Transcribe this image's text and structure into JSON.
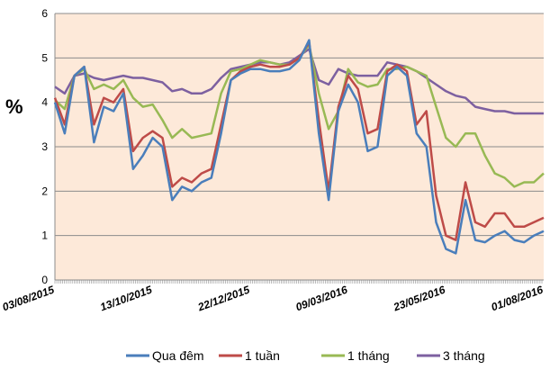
{
  "chart_data": {
    "type": "line",
    "title": "",
    "ylabel": "%",
    "xlabel": "",
    "ylim": [
      0,
      6
    ],
    "yticks": [
      0,
      1,
      2,
      3,
      4,
      5,
      6
    ],
    "x_tick_labels": [
      "03/08/2015",
      "13/10/2015",
      "22/12/2015",
      "09/03/2016",
      "23/05/2016",
      "01/08/2016"
    ],
    "grid": true,
    "legend_position": "bottom",
    "background_color": "#FDE9D9",
    "series": [
      {
        "name": "Qua đêm",
        "color": "#4A7EBB",
        "values": [
          4.0,
          3.3,
          4.6,
          4.8,
          3.1,
          3.9,
          3.8,
          4.2,
          2.5,
          2.8,
          3.2,
          3.0,
          1.8,
          2.1,
          2.0,
          2.2,
          2.3,
          3.3,
          4.5,
          4.65,
          4.75,
          4.75,
          4.7,
          4.7,
          4.75,
          4.95,
          5.4,
          3.3,
          1.8,
          3.8,
          4.4,
          4.0,
          2.9,
          3.0,
          4.6,
          4.8,
          4.6,
          3.3,
          3.0,
          1.3,
          0.7,
          0.6,
          1.8,
          0.9,
          0.85,
          1.0,
          1.1,
          0.9,
          0.85,
          1.0,
          1.1
        ]
      },
      {
        "name": "1 tuần",
        "color": "#BE4B48",
        "values": [
          4.1,
          3.5,
          4.6,
          4.8,
          3.5,
          4.1,
          4.0,
          4.3,
          2.9,
          3.2,
          3.35,
          3.2,
          2.1,
          2.3,
          2.2,
          2.4,
          2.5,
          3.5,
          4.5,
          4.7,
          4.8,
          4.85,
          4.8,
          4.8,
          4.85,
          5.0,
          5.35,
          3.6,
          2.0,
          3.9,
          4.6,
          4.3,
          3.3,
          3.4,
          4.7,
          4.85,
          4.7,
          3.5,
          3.8,
          1.9,
          1.0,
          0.9,
          2.2,
          1.3,
          1.2,
          1.5,
          1.5,
          1.2,
          1.2,
          1.3,
          1.4
        ]
      },
      {
        "name": "1 tháng",
        "color": "#98B954",
        "values": [
          4.05,
          3.85,
          4.6,
          4.75,
          4.3,
          4.4,
          4.3,
          4.5,
          4.1,
          3.9,
          3.95,
          3.6,
          3.2,
          3.4,
          3.2,
          3.25,
          3.3,
          4.2,
          4.7,
          4.75,
          4.85,
          4.95,
          4.9,
          4.85,
          4.85,
          5.0,
          5.3,
          4.2,
          3.4,
          3.8,
          4.75,
          4.45,
          4.35,
          4.4,
          4.75,
          4.75,
          4.8,
          4.7,
          4.6,
          3.9,
          3.2,
          3.0,
          3.3,
          3.3,
          2.8,
          2.4,
          2.3,
          2.1,
          2.2,
          2.2,
          2.4
        ]
      },
      {
        "name": "3 tháng",
        "color": "#7D60A0",
        "values": [
          4.35,
          4.2,
          4.6,
          4.65,
          4.55,
          4.5,
          4.55,
          4.6,
          4.55,
          4.55,
          4.5,
          4.45,
          4.25,
          4.3,
          4.2,
          4.2,
          4.3,
          4.55,
          4.75,
          4.8,
          4.85,
          4.9,
          4.9,
          4.85,
          4.9,
          5.05,
          5.2,
          4.5,
          4.4,
          4.75,
          4.65,
          4.6,
          4.6,
          4.6,
          4.9,
          4.85,
          4.8,
          4.7,
          4.55,
          4.4,
          4.25,
          4.15,
          4.1,
          3.9,
          3.85,
          3.8,
          3.8,
          3.75,
          3.75,
          3.75,
          3.75
        ]
      }
    ]
  }
}
